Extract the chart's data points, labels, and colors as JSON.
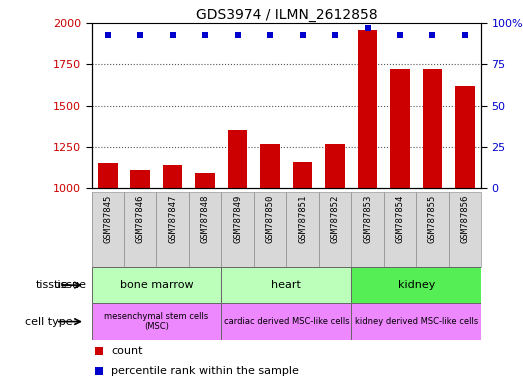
{
  "title": "GDS3974 / ILMN_2612858",
  "samples": [
    "GSM787845",
    "GSM787846",
    "GSM787847",
    "GSM787848",
    "GSM787849",
    "GSM787850",
    "GSM787851",
    "GSM787852",
    "GSM787853",
    "GSM787854",
    "GSM787855",
    "GSM787856"
  ],
  "counts": [
    1150,
    1110,
    1140,
    1090,
    1355,
    1270,
    1160,
    1270,
    1960,
    1720,
    1720,
    1620
  ],
  "percentile_ranks": [
    93,
    93,
    93,
    93,
    93,
    93,
    93,
    93,
    97,
    93,
    93,
    93
  ],
  "ylim_left": [
    1000,
    2000
  ],
  "ylim_right": [
    0,
    100
  ],
  "yticks_left": [
    1000,
    1250,
    1500,
    1750,
    2000
  ],
  "yticks_right": [
    0,
    25,
    50,
    75,
    100
  ],
  "bar_color": "#cc0000",
  "dot_color": "#0000cc",
  "tissue_groups": [
    {
      "label": "bone marrow",
      "start": 0,
      "end": 4,
      "color": "#bbffbb"
    },
    {
      "label": "heart",
      "start": 4,
      "end": 8,
      "color": "#bbffbb"
    },
    {
      "label": "kidney",
      "start": 8,
      "end": 12,
      "color": "#55ee55"
    }
  ],
  "celltype_groups": [
    {
      "label": "mesenchymal stem cells\n(MSC)",
      "start": 0,
      "end": 4,
      "color": "#ee88ff"
    },
    {
      "label": "cardiac derived MSC-like cells",
      "start": 4,
      "end": 8,
      "color": "#ee88ff"
    },
    {
      "label": "kidney derived MSC-like cells",
      "start": 8,
      "end": 12,
      "color": "#ee88ff"
    }
  ],
  "legend_count_label": "count",
  "legend_pct_label": "percentile rank within the sample",
  "tissue_label": "tissue",
  "celltype_label": "cell type",
  "sample_bg_color": "#d8d8d8",
  "plot_bg": "#ffffff",
  "grid_color": "#555555"
}
